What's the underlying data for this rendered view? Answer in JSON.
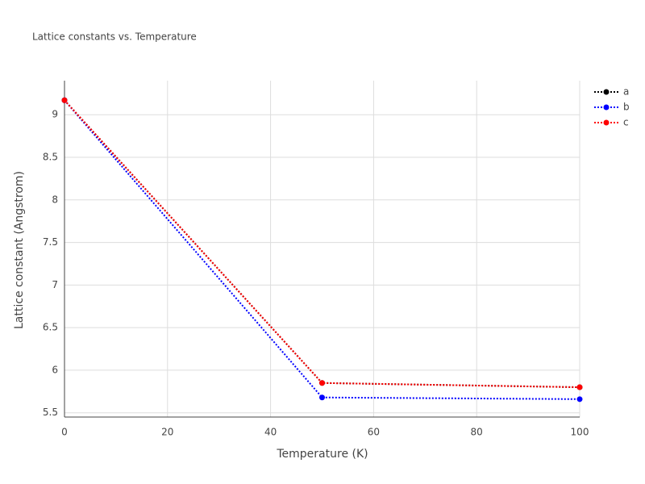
{
  "chart_data": {
    "type": "line",
    "title": "Lattice constants vs. Temperature",
    "x_label": "Temperature (K)",
    "y_label": "Lattice constant (Angstrom)",
    "x": [
      0,
      50,
      100
    ],
    "series": [
      {
        "name": "a",
        "color": "#000000",
        "values": [
          9.17,
          5.85,
          5.8
        ]
      },
      {
        "name": "b",
        "color": "#0000ff",
        "values": [
          9.17,
          5.68,
          5.66
        ]
      },
      {
        "name": "c",
        "color": "#ff0000",
        "values": [
          9.17,
          5.85,
          5.8
        ]
      }
    ],
    "xlim": [
      0,
      100
    ],
    "xticks": [
      0,
      20,
      40,
      60,
      80,
      100
    ],
    "ylim": [
      5.45,
      9.4
    ],
    "yticks": [
      5.5,
      6,
      6.5,
      7,
      7.5,
      8,
      8.5,
      9
    ],
    "grid": true,
    "legend": "right"
  }
}
